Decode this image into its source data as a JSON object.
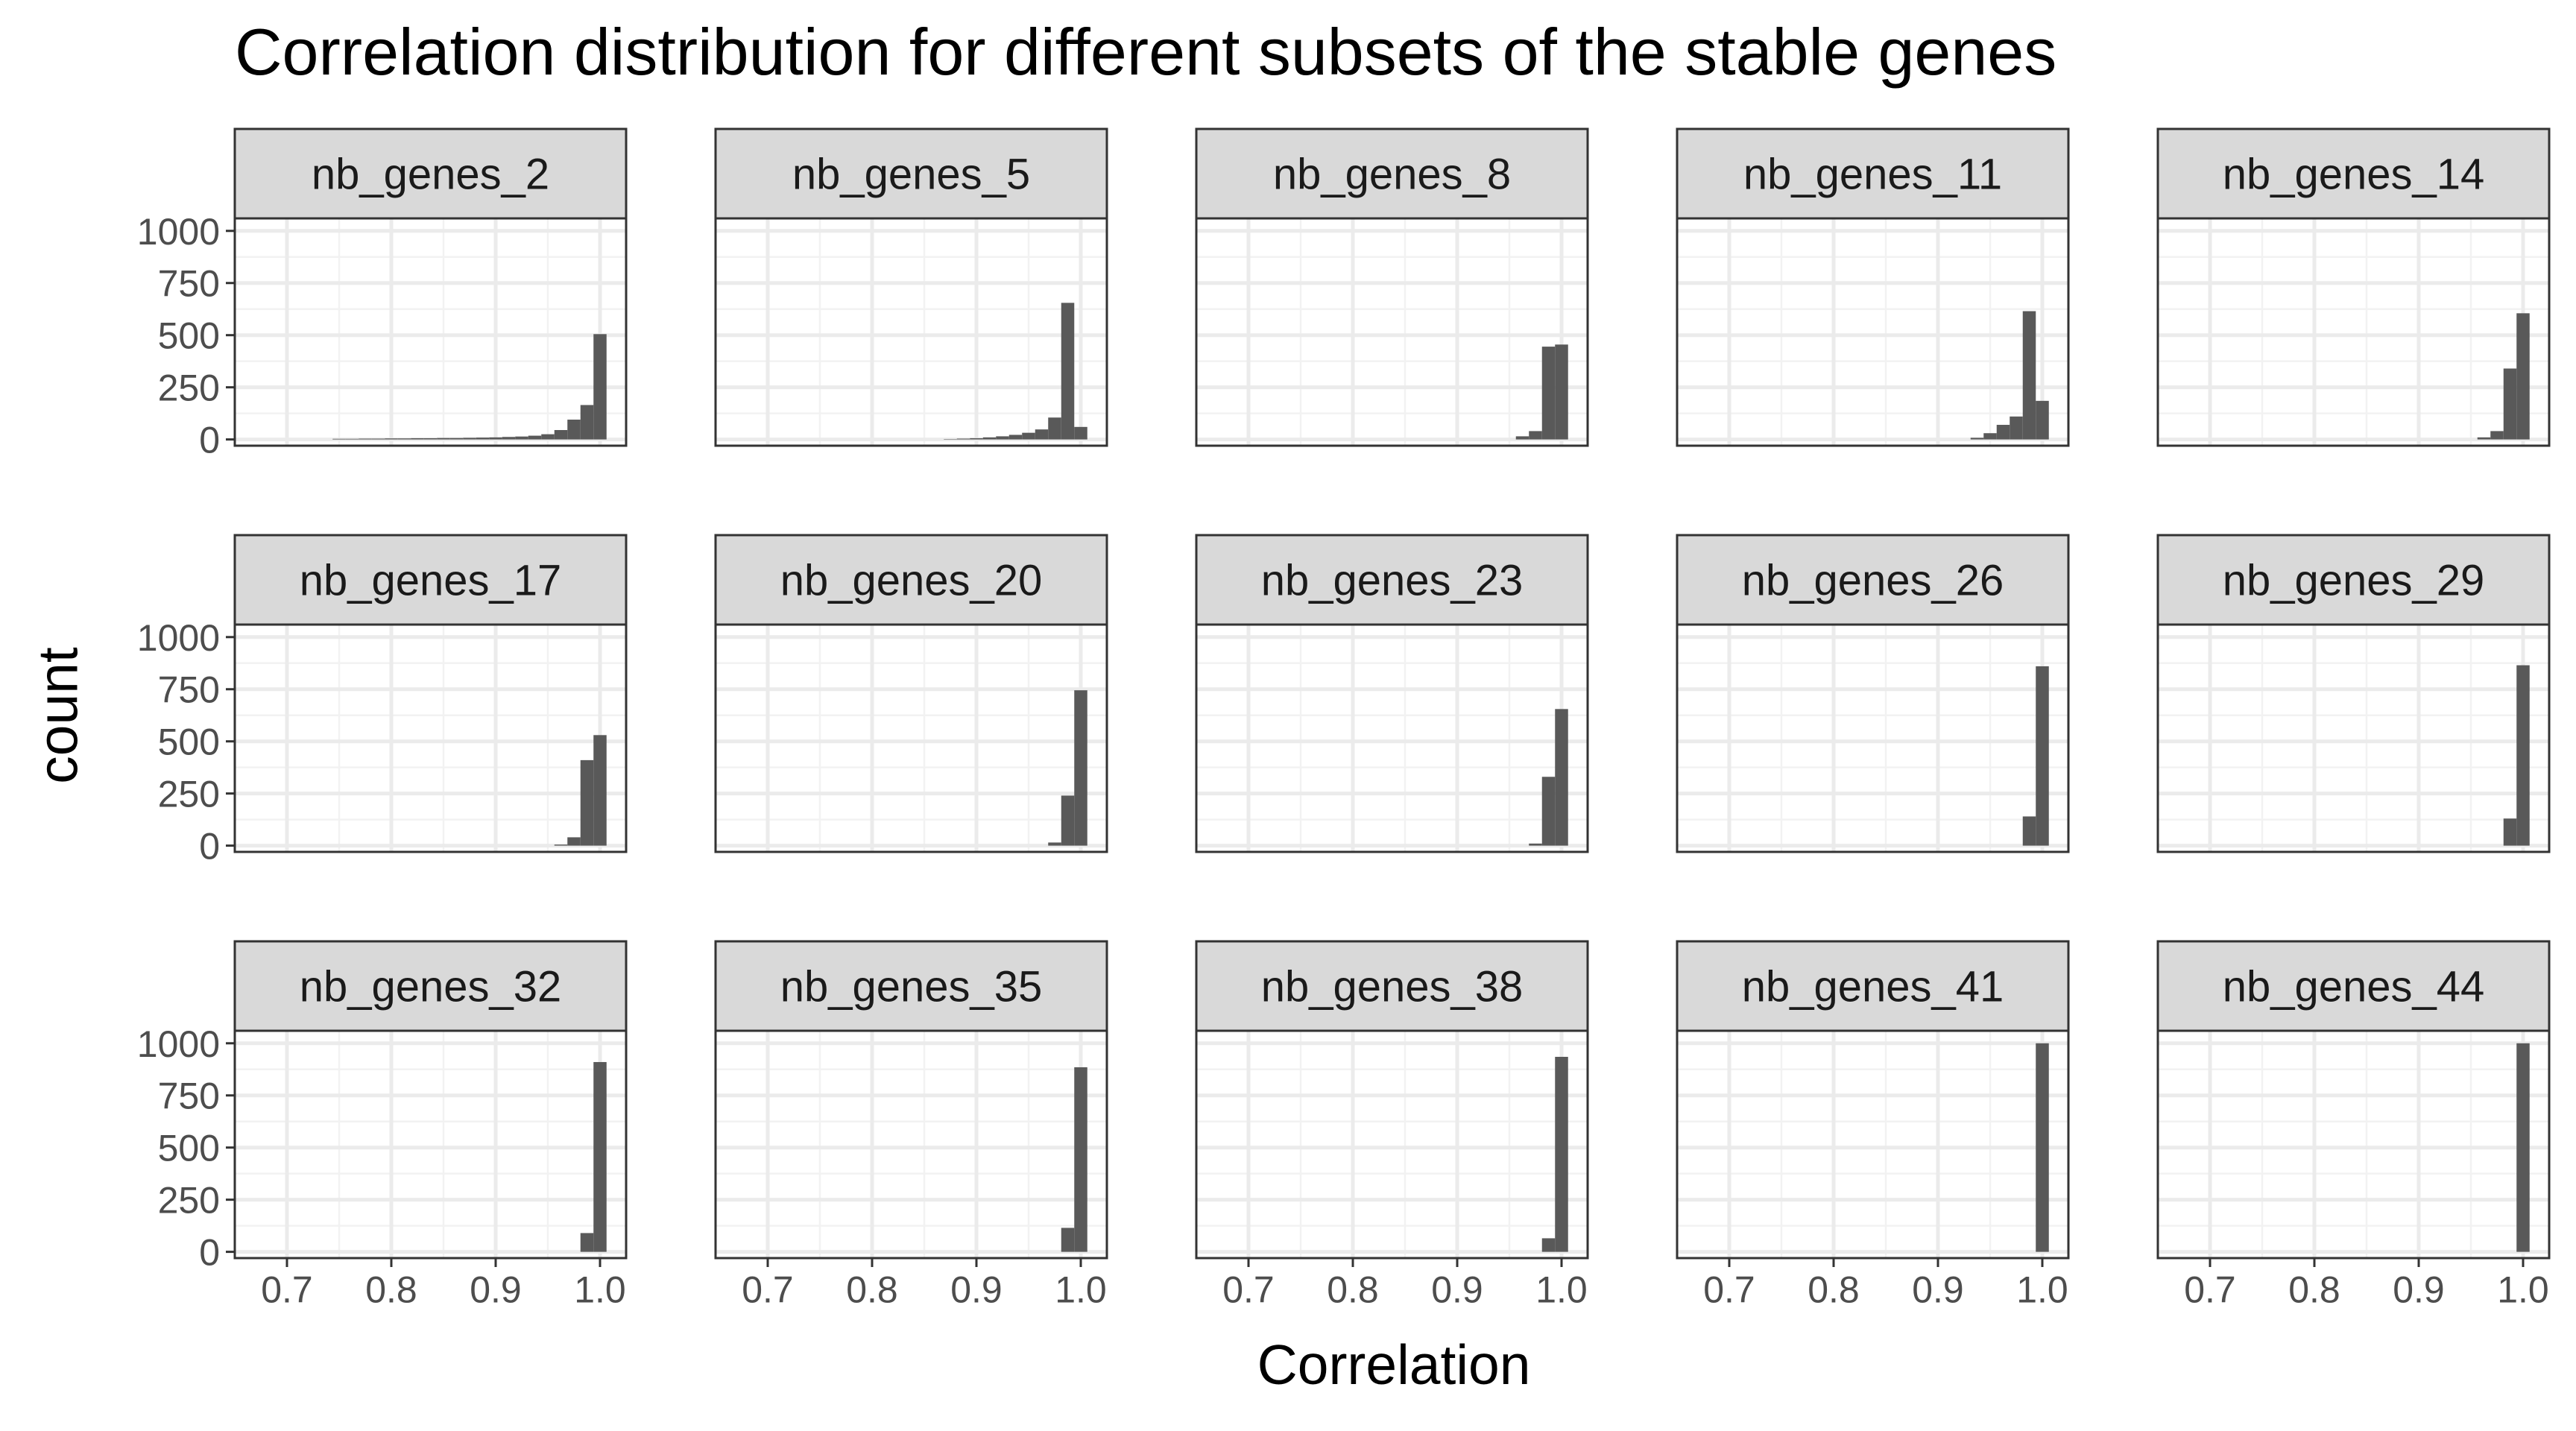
{
  "chart_data": {
    "type": "bar",
    "title": "Correlation distribution for different subsets of the stable genes",
    "xlabel": "Correlation",
    "ylabel": "count",
    "xlim": [
      0.65,
      1.025
    ],
    "ylim": [
      -30,
      1060
    ],
    "x_ticks": [
      0.7,
      0.8,
      0.9,
      1.0
    ],
    "x_tick_labels": [
      "0.7",
      "0.8",
      "0.9",
      "1.0"
    ],
    "y_ticks": [
      0,
      250,
      500,
      750,
      1000
    ],
    "y_tick_labels": [
      "0",
      "250",
      "500",
      "750",
      "1000"
    ],
    "bin_width": 0.0125,
    "grid": true,
    "bar_color": "#595959",
    "panels": [
      {
        "name": "nb_genes_2",
        "bins": [
          [
            0.75,
            3
          ],
          [
            0.7625,
            3
          ],
          [
            0.775,
            4
          ],
          [
            0.7875,
            4
          ],
          [
            0.8,
            5
          ],
          [
            0.8125,
            5
          ],
          [
            0.825,
            6
          ],
          [
            0.8375,
            6
          ],
          [
            0.85,
            7
          ],
          [
            0.8625,
            7
          ],
          [
            0.875,
            8
          ],
          [
            0.8875,
            9
          ],
          [
            0.9,
            10
          ],
          [
            0.9125,
            12
          ],
          [
            0.925,
            14
          ],
          [
            0.9375,
            18
          ],
          [
            0.95,
            25
          ],
          [
            0.9625,
            45
          ],
          [
            0.975,
            95
          ],
          [
            0.9875,
            165
          ],
          [
            1.0,
            505
          ]
        ]
      },
      {
        "name": "nb_genes_5",
        "bins": [
          [
            0.875,
            2
          ],
          [
            0.8875,
            4
          ],
          [
            0.9,
            6
          ],
          [
            0.9125,
            10
          ],
          [
            0.925,
            15
          ],
          [
            0.9375,
            22
          ],
          [
            0.95,
            32
          ],
          [
            0.9625,
            48
          ],
          [
            0.975,
            105
          ],
          [
            0.9875,
            655
          ],
          [
            1.0,
            60
          ]
        ]
      },
      {
        "name": "nb_genes_8",
        "bins": [
          [
            0.9625,
            15
          ],
          [
            0.975,
            40
          ],
          [
            0.9875,
            445
          ],
          [
            1.0,
            455
          ]
        ]
      },
      {
        "name": "nb_genes_11",
        "bins": [
          [
            0.9375,
            8
          ],
          [
            0.95,
            30
          ],
          [
            0.9625,
            70
          ],
          [
            0.975,
            110
          ],
          [
            0.9875,
            615
          ],
          [
            1.0,
            185
          ]
        ]
      },
      {
        "name": "nb_genes_14",
        "bins": [
          [
            0.9625,
            10
          ],
          [
            0.975,
            40
          ],
          [
            0.9875,
            340
          ],
          [
            1.0,
            605
          ]
        ]
      },
      {
        "name": "nb_genes_17",
        "bins": [
          [
            0.9625,
            5
          ],
          [
            0.975,
            40
          ],
          [
            0.9875,
            410
          ],
          [
            1.0,
            530
          ]
        ]
      },
      {
        "name": "nb_genes_20",
        "bins": [
          [
            0.975,
            15
          ],
          [
            0.9875,
            240
          ],
          [
            1.0,
            745
          ]
        ]
      },
      {
        "name": "nb_genes_23",
        "bins": [
          [
            0.975,
            10
          ],
          [
            0.9875,
            330
          ],
          [
            1.0,
            655
          ]
        ]
      },
      {
        "name": "nb_genes_26",
        "bins": [
          [
            0.9875,
            140
          ],
          [
            1.0,
            860
          ]
        ]
      },
      {
        "name": "nb_genes_29",
        "bins": [
          [
            0.9875,
            130
          ],
          [
            1.0,
            865
          ]
        ]
      },
      {
        "name": "nb_genes_32",
        "bins": [
          [
            0.9875,
            90
          ],
          [
            1.0,
            910
          ]
        ]
      },
      {
        "name": "nb_genes_35",
        "bins": [
          [
            0.9875,
            115
          ],
          [
            1.0,
            885
          ]
        ]
      },
      {
        "name": "nb_genes_38",
        "bins": [
          [
            0.9875,
            65
          ],
          [
            1.0,
            935
          ]
        ]
      },
      {
        "name": "nb_genes_41",
        "bins": [
          [
            1.0,
            1000
          ]
        ]
      },
      {
        "name": "nb_genes_44",
        "bins": [
          [
            1.0,
            1000
          ]
        ]
      }
    ]
  }
}
